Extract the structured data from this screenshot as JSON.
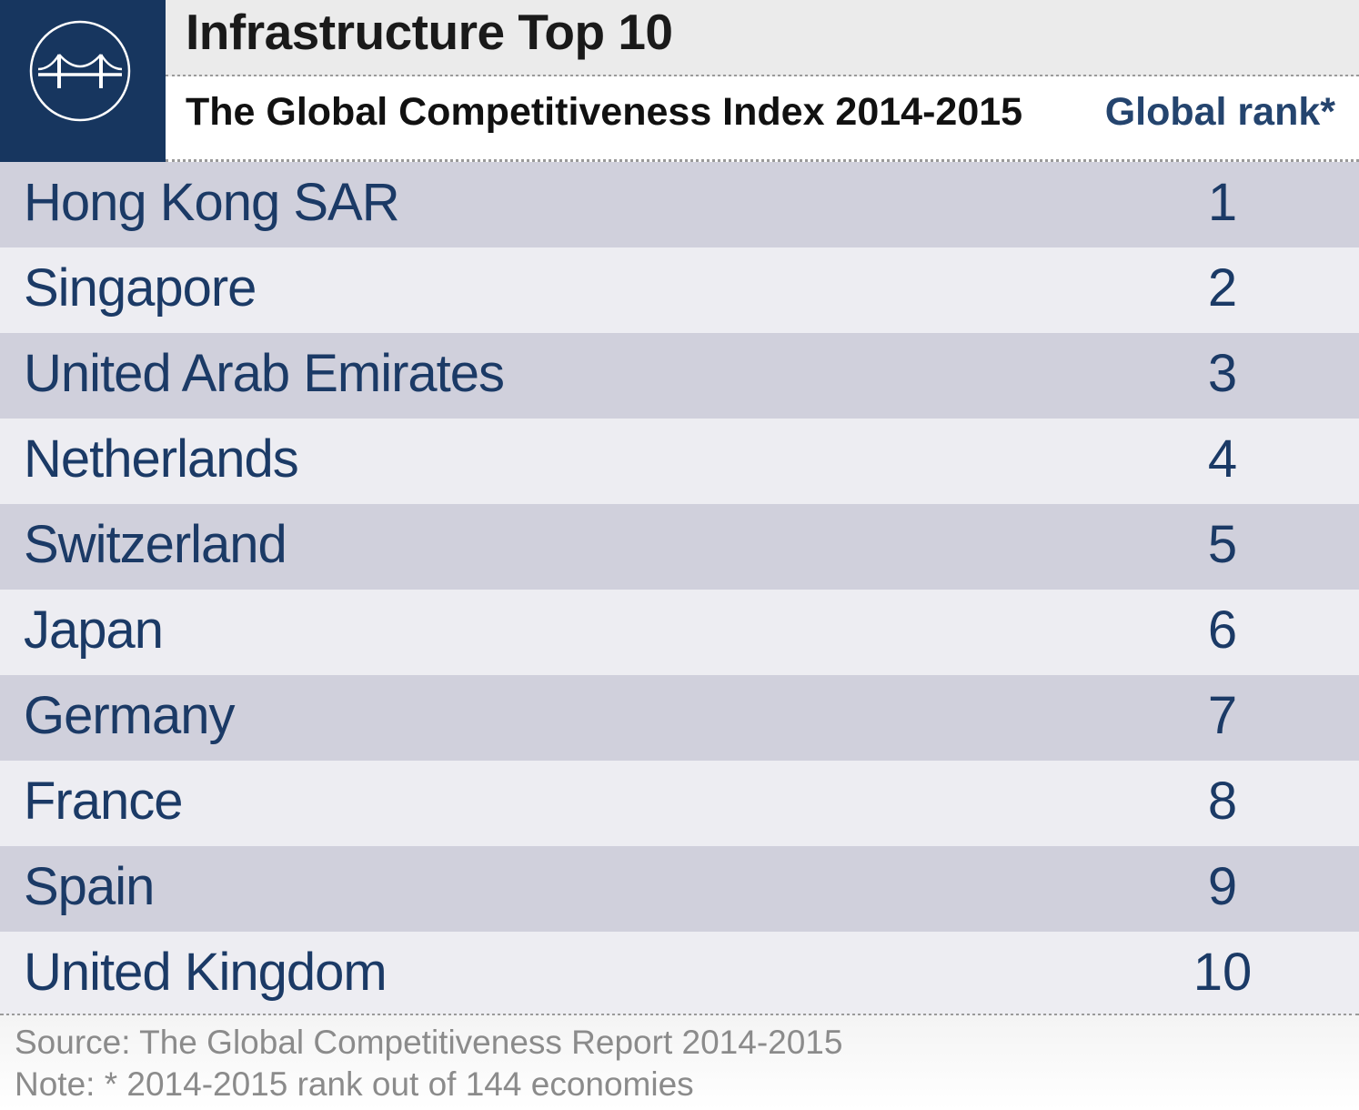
{
  "header": {
    "title": "Infrastructure Top 10",
    "subtitle": "The Global Competitiveness Index 2014-2015",
    "column_label": "Global rank*",
    "logo_icon": "bridge-icon"
  },
  "colors": {
    "brand_navy": "#17365f",
    "row_dark": "#d0d0dc",
    "row_light": "#ededf2",
    "text_navy": "#1b3a66"
  },
  "chart_data": {
    "type": "table",
    "title": "Infrastructure Top 10",
    "subtitle": "The Global Competitiveness Index 2014-2015",
    "columns": [
      "",
      "Global rank*"
    ],
    "rows": [
      {
        "country": "Hong Kong SAR",
        "rank": "1"
      },
      {
        "country": "Singapore",
        "rank": "2"
      },
      {
        "country": "United Arab Emirates",
        "rank": "3"
      },
      {
        "country": "Netherlands",
        "rank": "4"
      },
      {
        "country": "Switzerland",
        "rank": "5"
      },
      {
        "country": "Japan",
        "rank": "6"
      },
      {
        "country": "Germany",
        "rank": "7"
      },
      {
        "country": "France",
        "rank": "8"
      },
      {
        "country": "Spain",
        "rank": "9"
      },
      {
        "country": "United Kingdom",
        "rank": "10"
      }
    ]
  },
  "footer": {
    "source": "Source: The Global Competitiveness Report 2014-2015",
    "note": "Note: * 2014-2015 rank out of 144 economies"
  }
}
